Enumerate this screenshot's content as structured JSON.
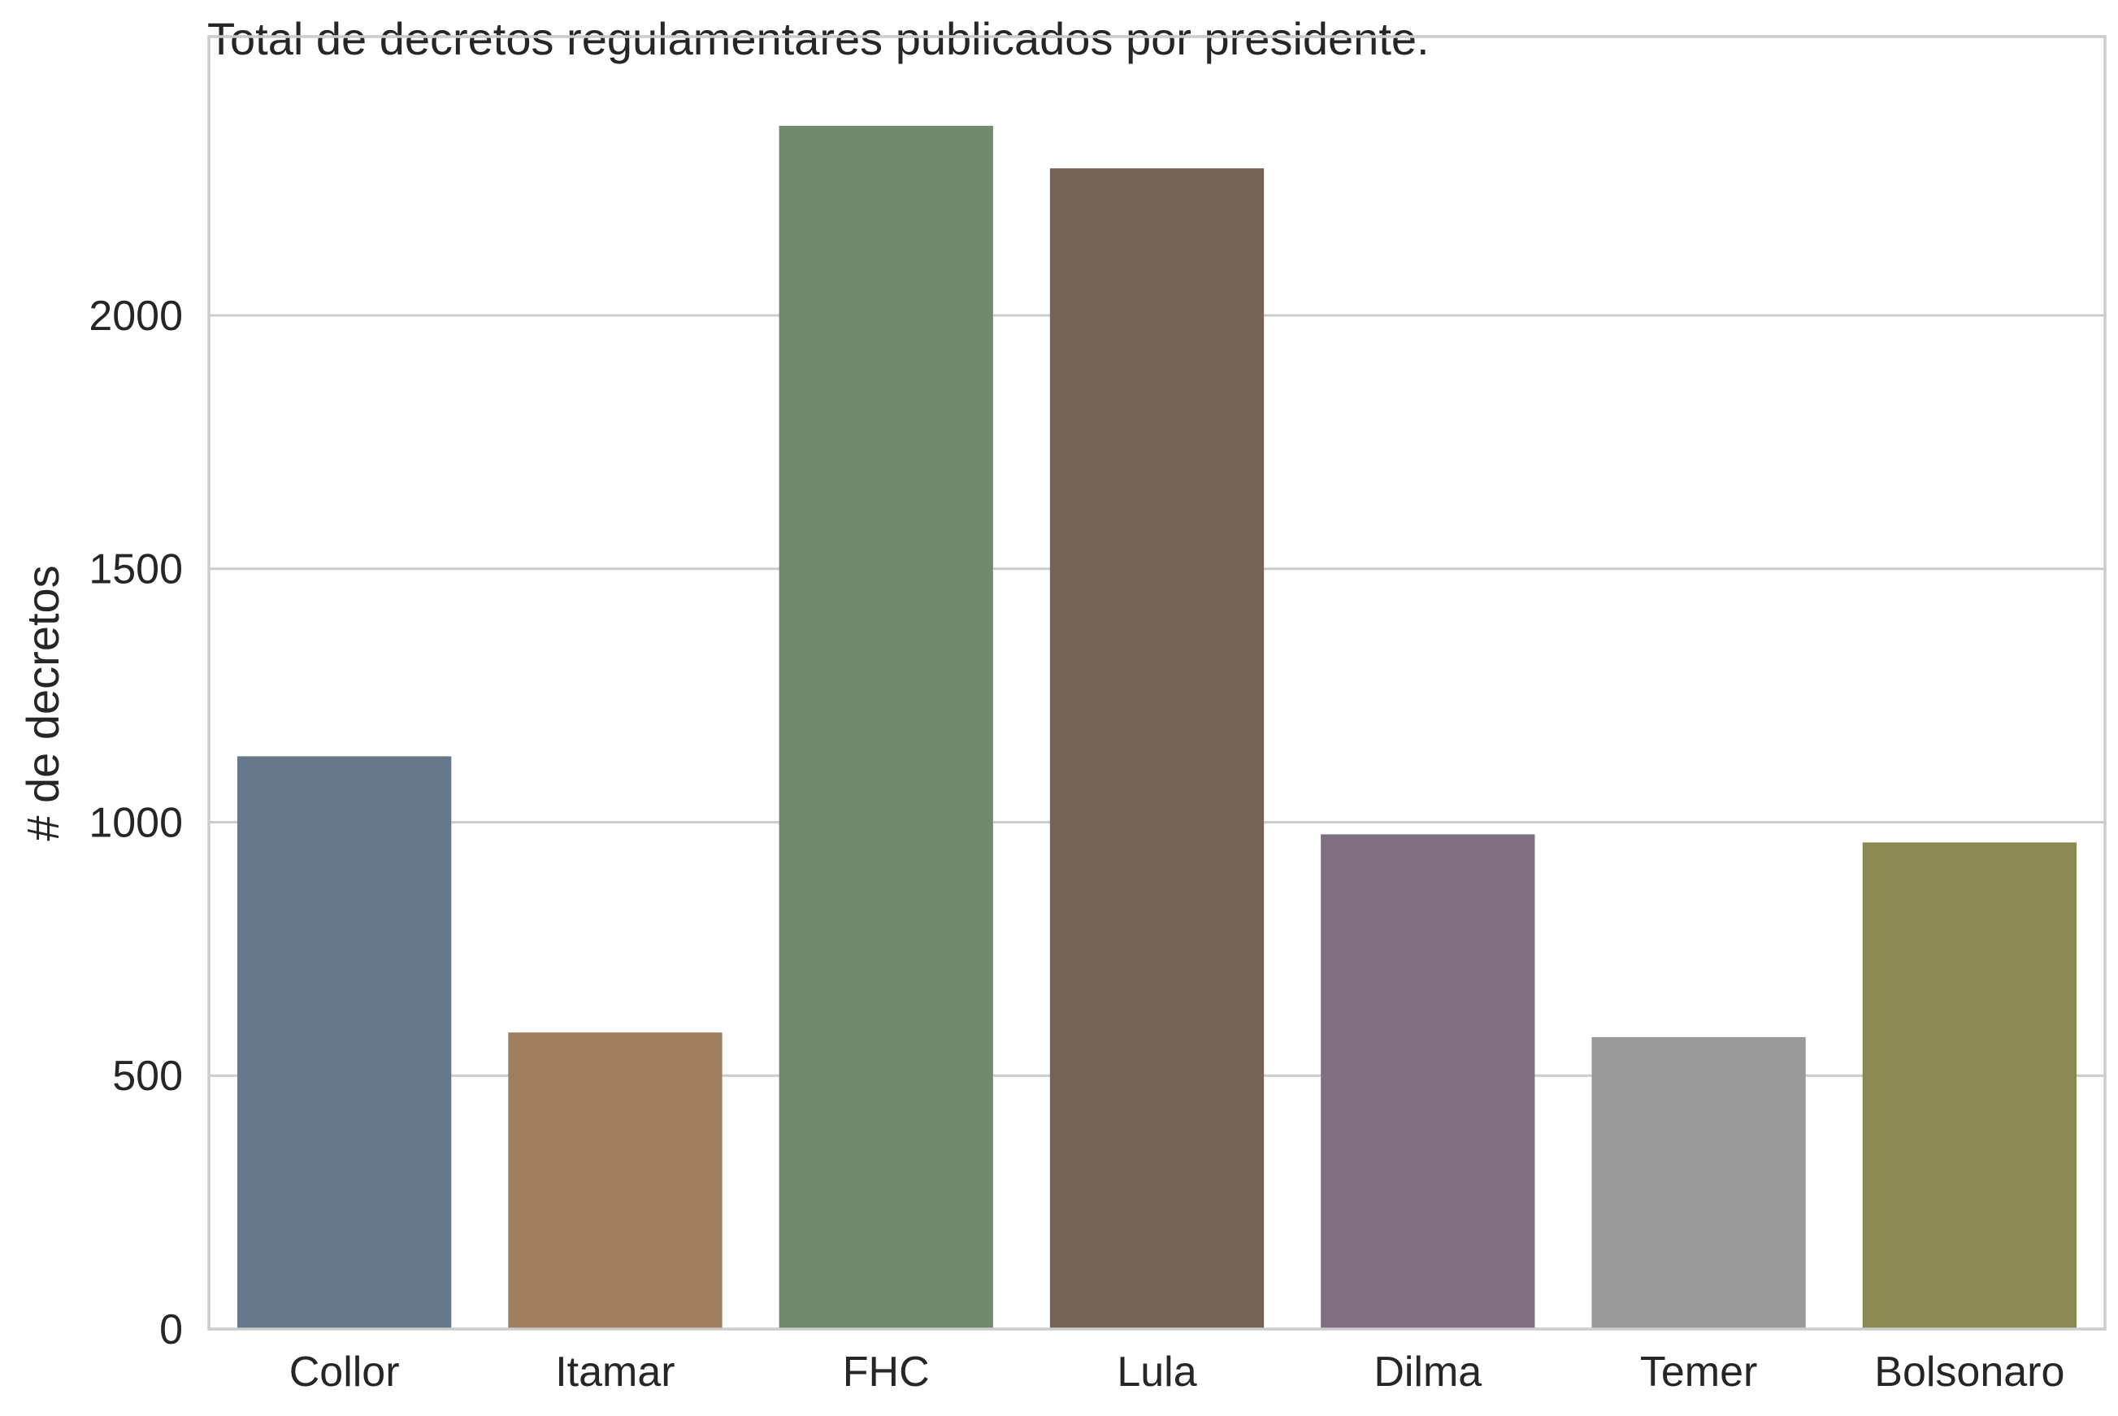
{
  "chart_data": {
    "type": "bar",
    "title": "Total de decretos regulamentares publicados por presidente.",
    "xlabel": "",
    "ylabel": "# de decretos",
    "categories": [
      "Collor",
      "Itamar",
      "FHC",
      "Lula",
      "Dilma",
      "Temer",
      "Bolsonaro"
    ],
    "values": [
      1130,
      585,
      2374,
      2290,
      976,
      576,
      960
    ],
    "colors": [
      "#67788a",
      "#9e7e5f",
      "#72896f",
      "#766357",
      "#7f6f80",
      "#9a9a9a",
      "#8b8952"
    ],
    "yticks": [
      0,
      500,
      1000,
      1500,
      2000
    ],
    "ytick_labels": [
      "0",
      "500",
      "1000",
      "1500",
      "2000"
    ],
    "ylim": [
      0,
      2550
    ],
    "grid": "horizontal",
    "legend": "none"
  }
}
